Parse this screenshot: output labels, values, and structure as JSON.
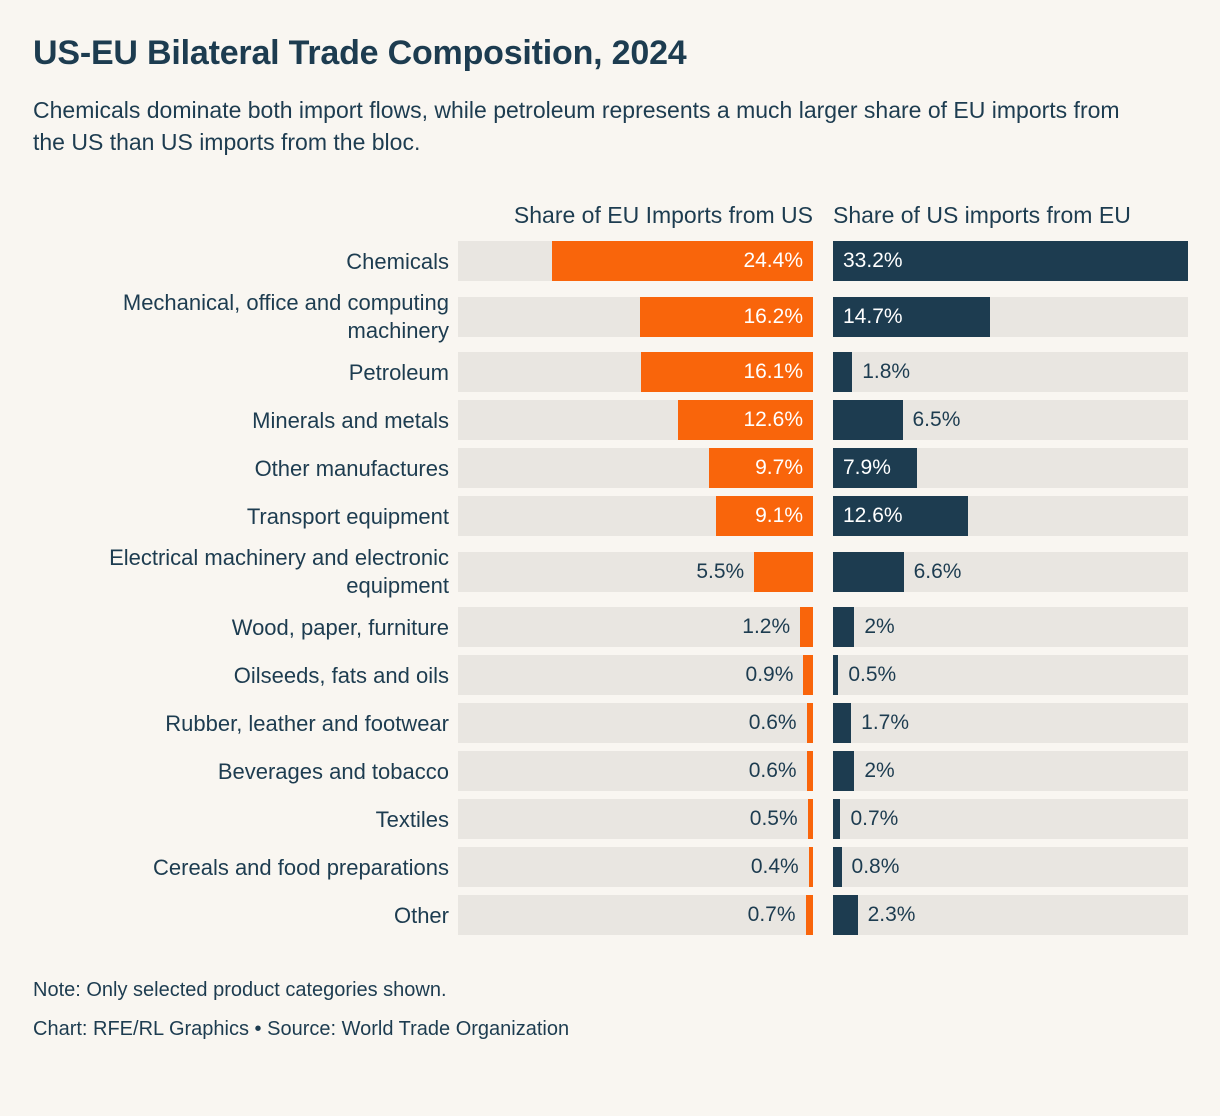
{
  "title": "US-EU Bilateral Trade Composition, 2024",
  "subtitle": "Chemicals dominate both import flows, while petroleum represents a much larger share of EU imports from the US than US imports from the bloc.",
  "note": "Note: Only selected product categories shown.",
  "credit": "Chart: RFE/RL Graphics • Source: World Trade Organization",
  "colors": {
    "background": "#f9f6f1",
    "orange": "#f9650b",
    "navy": "#1d3c50",
    "track": "#e9e6e1",
    "text": "#1d3c50"
  },
  "chart_data": {
    "type": "bar",
    "orientation": "horizontal-paired",
    "left_header": "Share of EU Imports from US",
    "right_header": "Share of US imports from EU",
    "scale_max": 33.2,
    "inside_label_threshold": 7,
    "categories": [
      "Chemicals",
      "Mechanical, office and computing machinery",
      "Petroleum",
      "Minerals and metals",
      "Other manufactures",
      "Transport equipment",
      "Electrical machinery and electronic equipment",
      "Wood, paper, furniture",
      "Oilseeds, fats and oils",
      "Rubber, leather and footwear",
      "Beverages and tobacco",
      "Textiles",
      "Cereals and food preparations",
      "Other"
    ],
    "series": [
      {
        "name": "Share of EU Imports from US",
        "color": "#f9650b",
        "values": [
          24.4,
          16.2,
          16.1,
          12.6,
          9.7,
          9.1,
          5.5,
          1.2,
          0.9,
          0.6,
          0.6,
          0.5,
          0.4,
          0.7
        ],
        "labels": [
          "24.4%",
          "16.2%",
          "16.1%",
          "12.6%",
          "9.7%",
          "9.1%",
          "5.5%",
          "1.2%",
          "0.9%",
          "0.6%",
          "0.6%",
          "0.5%",
          "0.4%",
          "0.7%"
        ]
      },
      {
        "name": "Share of US imports from EU",
        "color": "#1d3c50",
        "values": [
          33.2,
          14.7,
          1.8,
          6.5,
          7.9,
          12.6,
          6.6,
          2,
          0.5,
          1.7,
          2,
          0.7,
          0.8,
          2.3
        ],
        "labels": [
          "33.2%",
          "14.7%",
          "1.8%",
          "6.5%",
          "7.9%",
          "12.6%",
          "6.6%",
          "2%",
          "0.5%",
          "1.7%",
          "2%",
          "0.7%",
          "0.8%",
          "2.3%"
        ]
      }
    ]
  }
}
